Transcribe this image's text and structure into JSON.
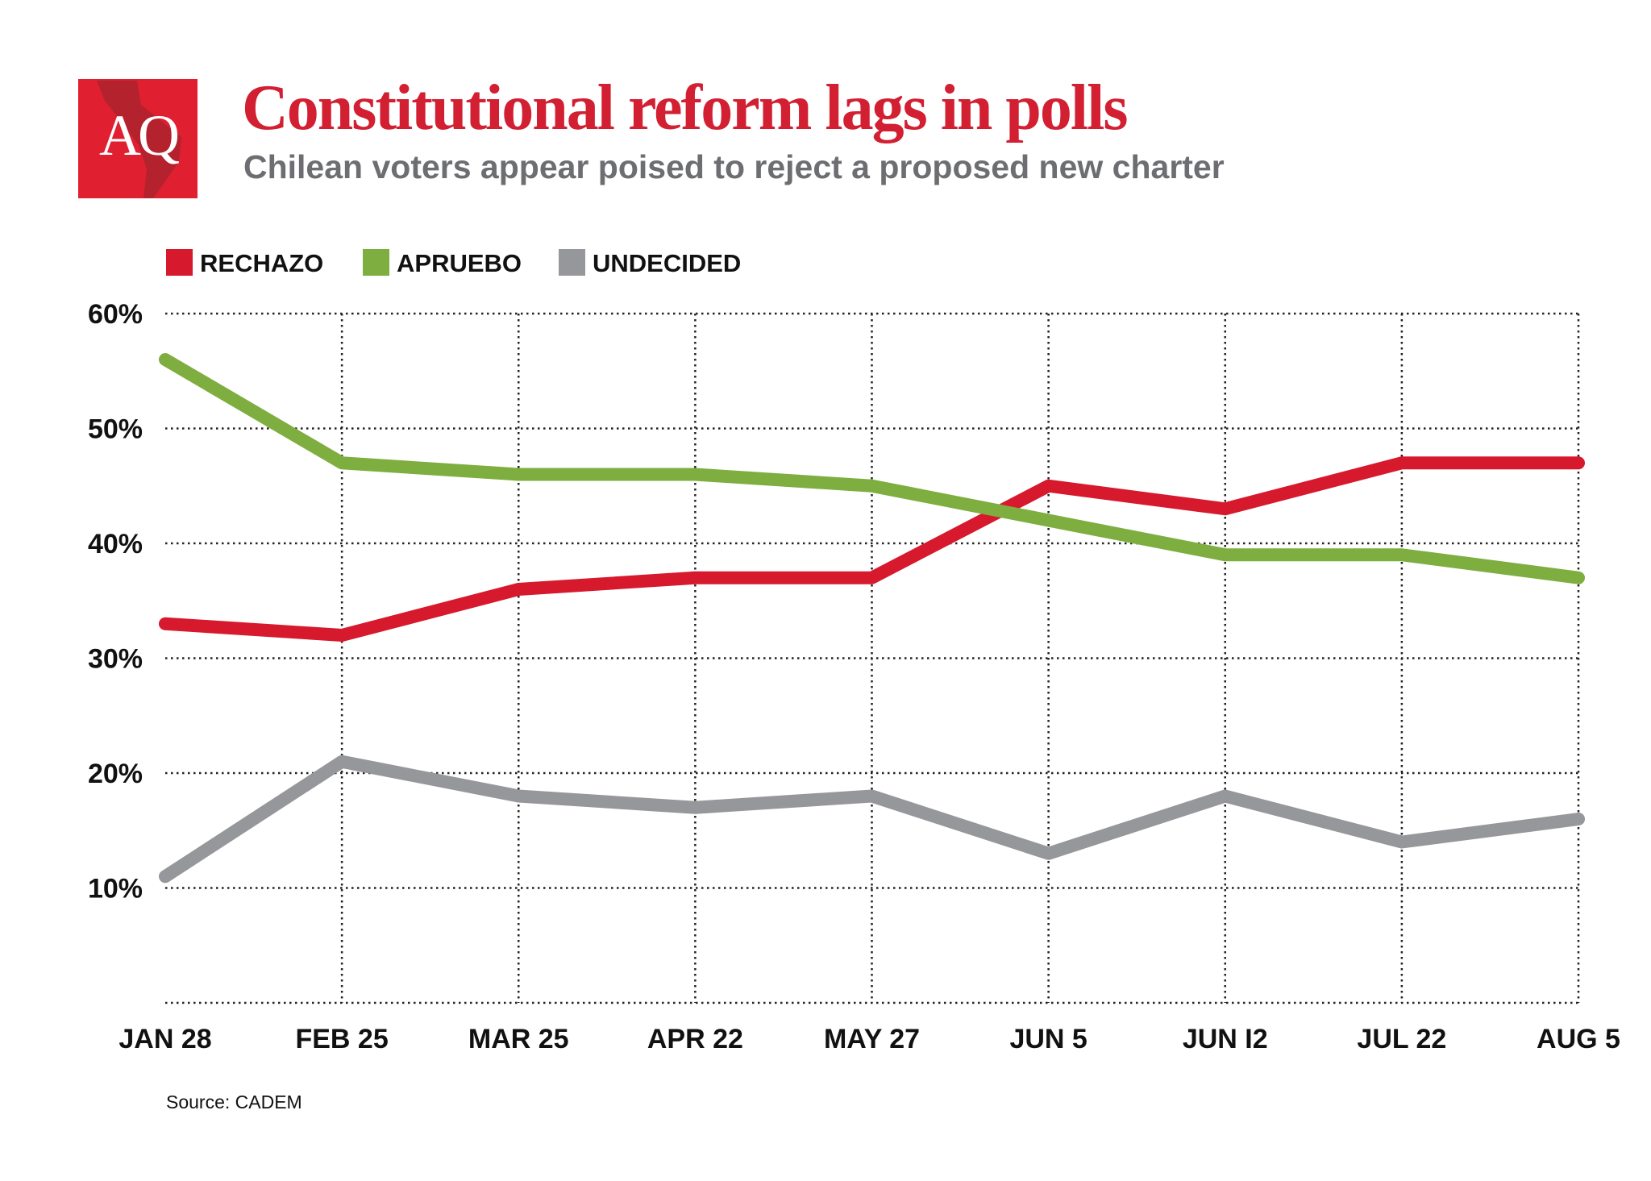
{
  "logo_text": "AQ",
  "colors": {
    "brand": "#d71f30",
    "subtitle": "#6d6e71",
    "rechazo": "#d7192d",
    "apruebo": "#7dae3f",
    "undecided": "#96979a"
  },
  "chart_data": {
    "type": "line",
    "title": "Constitutional reform lags in polls",
    "subtitle": "Chilean voters appear poised to reject a proposed new charter",
    "categories": [
      "JAN 28",
      "FEB 25",
      "MAR 25",
      "APR 22",
      "MAY 27",
      "JUN 5",
      "JUN I2",
      "JUL 22",
      "AUG 5"
    ],
    "series": [
      {
        "name": "RECHAZO",
        "color": "#d7192d",
        "values": [
          33,
          32,
          36,
          37,
          37,
          45,
          43,
          47,
          47
        ]
      },
      {
        "name": "APRUEBO",
        "color": "#7dae3f",
        "values": [
          56,
          47,
          46,
          46,
          45,
          42,
          39,
          39,
          37
        ]
      },
      {
        "name": "UNDECIDED",
        "color": "#96979a",
        "values": [
          11,
          21,
          18,
          17,
          18,
          13,
          18,
          14,
          16
        ]
      }
    ],
    "yticks": [
      10,
      20,
      30,
      40,
      50,
      60
    ],
    "ytick_labels": [
      "10%",
      "20%",
      "30%",
      "40%",
      "50%",
      "60%"
    ],
    "ylim": [
      0,
      60
    ],
    "xlabel": "",
    "ylabel": "",
    "grid": true,
    "legend": "top-left",
    "source": "Source: CADEM"
  }
}
